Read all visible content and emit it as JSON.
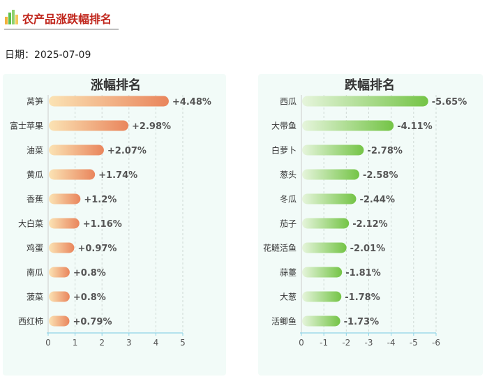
{
  "header": {
    "title": "农产品涨跌幅排名",
    "icon": "bar-chart-icon"
  },
  "date": {
    "label": "日期：",
    "value": "2025-07-09"
  },
  "chart_data": [
    {
      "type": "bar",
      "orientation": "horizontal",
      "title": "涨幅排名",
      "categories": [
        "莴笋",
        "富士苹果",
        "油菜",
        "黄瓜",
        "香蕉",
        "大白菜",
        "鸡蛋",
        "南瓜",
        "菠菜",
        "西红柿"
      ],
      "values": [
        4.48,
        2.98,
        2.07,
        1.74,
        1.2,
        1.16,
        0.97,
        0.8,
        0.8,
        0.79
      ],
      "labels": [
        "+4.48%",
        "+2.98%",
        "+2.07%",
        "+1.74%",
        "+1.2%",
        "+1.16%",
        "+0.97%",
        "+0.8%",
        "+0.8%",
        "+0.79%"
      ],
      "xlim": [
        0,
        5
      ],
      "xticks": [
        "0",
        "1",
        "2",
        "3",
        "4",
        "5"
      ],
      "grid": "vertical-dashed",
      "colors": [
        "#fbe3b4",
        "#e9855c"
      ]
    },
    {
      "type": "bar",
      "orientation": "horizontal",
      "title": "跌幅排名",
      "categories": [
        "西瓜",
        "大带鱼",
        "白萝卜",
        "葱头",
        "冬瓜",
        "茄子",
        "花鲢活鱼",
        "蒜薹",
        "大葱",
        "活鲫鱼"
      ],
      "values": [
        -5.65,
        -4.11,
        -2.78,
        -2.58,
        -2.44,
        -2.12,
        -2.01,
        -1.81,
        -1.78,
        -1.73
      ],
      "labels": [
        "-5.65%",
        "-4.11%",
        "-2.78%",
        "-2.58%",
        "-2.44%",
        "-2.12%",
        "-2.01%",
        "-1.81%",
        "-1.78%",
        "-1.73%"
      ],
      "xlim": [
        0,
        -6
      ],
      "xticks": [
        "0",
        "-1",
        "-2",
        "-3",
        "-4",
        "-5",
        "-6"
      ],
      "grid": "vertical-dashed",
      "colors": [
        "#e6f5dc",
        "#74c446"
      ]
    }
  ]
}
